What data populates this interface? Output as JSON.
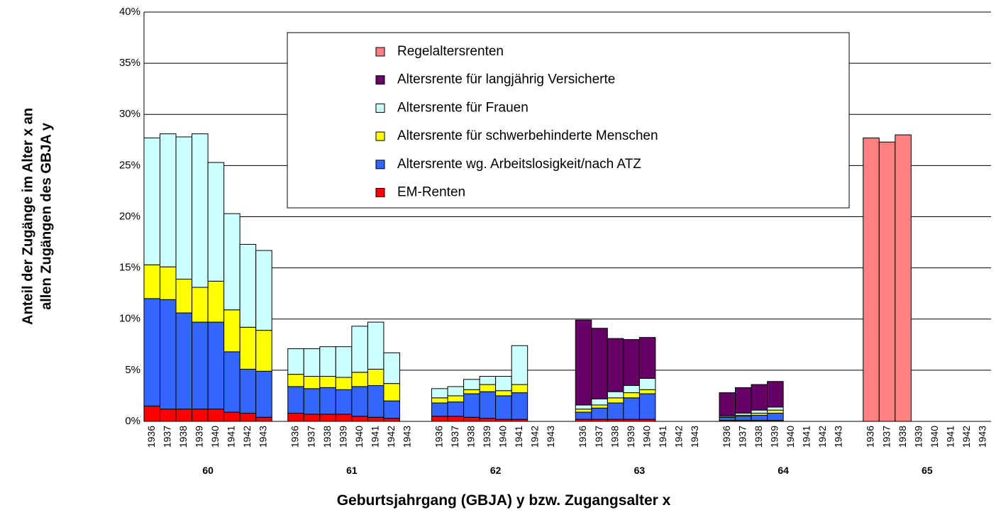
{
  "chart_data": {
    "type": "stacked_bar",
    "x_label": "Geburtsjahrgang (GBJA) y bzw. Zugangsalter x",
    "y_label": [
      "Anteil der Zugänge im Alter x an",
      "allen Zugängen des GBJA y"
    ],
    "groups": [
      "60",
      "61",
      "62",
      "63",
      "64",
      "65"
    ],
    "categories": [
      "1936",
      "1937",
      "1938",
      "1939",
      "1940",
      "1941",
      "1942",
      "1943",
      null,
      "1936",
      "1937",
      "1938",
      "1939",
      "1940",
      "1941",
      "1942",
      "1943",
      null,
      "1936",
      "1937",
      "1938",
      "1939",
      "1940",
      "1941",
      "1942",
      "1943",
      null,
      "1936",
      "1937",
      "1938",
      "1939",
      "1940",
      "1941",
      "1942",
      "1943",
      null,
      "1936",
      "1937",
      "1938",
      "1939",
      "1940",
      "1941",
      "1942",
      "1943",
      null,
      "1936",
      "1937",
      "1938",
      "1939",
      "1940",
      "1941",
      "1942",
      "1943"
    ],
    "series": [
      {
        "name": "EM-Renten",
        "color": "#ff0000",
        "values": [
          1.5,
          1.2,
          1.2,
          1.2,
          1.2,
          0.9,
          0.8,
          0.4,
          null,
          0.8,
          0.7,
          0.7,
          0.7,
          0.5,
          0.4,
          0.3,
          null,
          null,
          0.5,
          0.5,
          0.4,
          0.3,
          0.2,
          0.2,
          null,
          null,
          null,
          0.2,
          0.2,
          0.2,
          0.2,
          0.2,
          null,
          null,
          null,
          null,
          0.1,
          0.1,
          0.1,
          0.1,
          null,
          null,
          null,
          null,
          null,
          null,
          null,
          null,
          null,
          null,
          null,
          null,
          null
        ]
      },
      {
        "name": "Altersrente wg. Arbeitslosigkeit/nach ATZ",
        "color": "#3366ff",
        "values": [
          10.5,
          10.7,
          9.4,
          8.5,
          8.5,
          5.9,
          4.3,
          4.5,
          null,
          2.6,
          2.5,
          2.6,
          2.4,
          2.9,
          3.1,
          1.7,
          null,
          null,
          1.3,
          1.4,
          2.3,
          2.6,
          2.3,
          2.6,
          null,
          null,
          null,
          0.7,
          1.1,
          1.6,
          2.1,
          2.5,
          null,
          null,
          null,
          null,
          0.3,
          0.4,
          0.5,
          0.7,
          null,
          null,
          null,
          null,
          null,
          null,
          null,
          null,
          null,
          null,
          null,
          null,
          null
        ]
      },
      {
        "name": "Altersrente für schwerbehinderte Menschen",
        "color": "#ffff00",
        "values": [
          3.3,
          3.2,
          3.3,
          3.4,
          4.0,
          4.1,
          4.1,
          4.0,
          null,
          1.2,
          1.2,
          1.1,
          1.2,
          1.4,
          1.6,
          1.7,
          null,
          null,
          0.5,
          0.6,
          0.4,
          0.7,
          0.5,
          0.8,
          null,
          null,
          null,
          0.3,
          0.3,
          0.5,
          0.5,
          0.4,
          null,
          null,
          null,
          null,
          0.1,
          0.1,
          0.2,
          0.3,
          null,
          null,
          null,
          null,
          null,
          null,
          null,
          null,
          null,
          null,
          null,
          null,
          null
        ]
      },
      {
        "name": "Altersrente für Frauen",
        "color": "#ccffff",
        "values": [
          12.4,
          13.0,
          13.9,
          15.0,
          11.6,
          9.4,
          8.1,
          7.8,
          null,
          2.5,
          2.7,
          2.9,
          3.0,
          4.5,
          4.6,
          3.0,
          null,
          null,
          0.9,
          0.9,
          1.0,
          0.8,
          1.4,
          3.8,
          null,
          null,
          null,
          0.4,
          0.6,
          0.6,
          0.7,
          1.1,
          null,
          null,
          null,
          null,
          0.1,
          0.2,
          0.3,
          0.3,
          null,
          null,
          null,
          null,
          null,
          null,
          null,
          null,
          null,
          null,
          null,
          null,
          null
        ]
      },
      {
        "name": "Altersrente für langjährig Versicherte",
        "color": "#660066",
        "values": [
          null,
          null,
          null,
          null,
          null,
          null,
          null,
          null,
          null,
          null,
          null,
          null,
          null,
          null,
          null,
          null,
          null,
          null,
          null,
          null,
          null,
          null,
          null,
          null,
          null,
          null,
          null,
          8.3,
          6.9,
          5.2,
          4.5,
          4.0,
          null,
          null,
          null,
          null,
          2.2,
          2.5,
          2.5,
          2.5,
          null,
          null,
          null,
          null,
          null,
          null,
          null,
          null,
          null,
          null,
          null,
          null,
          null
        ]
      },
      {
        "name": "Regelaltersrenten",
        "color": "#ff8080",
        "values": [
          null,
          null,
          null,
          null,
          null,
          null,
          null,
          null,
          null,
          null,
          null,
          null,
          null,
          null,
          null,
          null,
          null,
          null,
          null,
          null,
          null,
          null,
          null,
          null,
          null,
          null,
          null,
          null,
          null,
          null,
          null,
          null,
          null,
          null,
          null,
          null,
          null,
          null,
          null,
          null,
          null,
          null,
          null,
          null,
          null,
          27.7,
          27.3,
          28.0,
          null,
          null,
          null,
          null,
          null
        ]
      }
    ],
    "ylim": [
      0,
      40
    ],
    "yticks": [
      {
        "value": 0,
        "label": "0%"
      },
      {
        "value": 5,
        "label": "5%"
      },
      {
        "value": 10,
        "label": "10%"
      },
      {
        "value": 15,
        "label": "15%"
      },
      {
        "value": 20,
        "label": "20%"
      },
      {
        "value": 25,
        "label": "25%"
      },
      {
        "value": 30,
        "label": "30%"
      },
      {
        "value": 35,
        "label": "35%"
      },
      {
        "value": 40,
        "label": "40%"
      }
    ],
    "grid": true
  }
}
